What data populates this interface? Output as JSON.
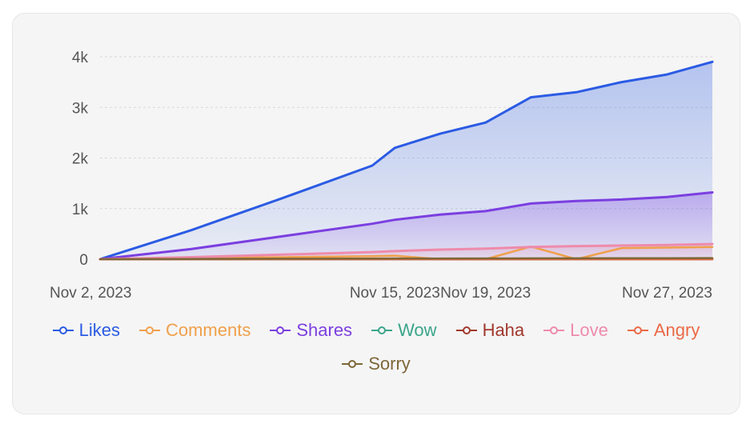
{
  "chart_data": {
    "type": "area",
    "title": "",
    "xlabel": "",
    "ylabel": "",
    "x": [
      "2023-11-02",
      "2023-11-06",
      "2023-11-10",
      "2023-11-14",
      "2023-11-15",
      "2023-11-17",
      "2023-11-19",
      "2023-11-21",
      "2023-11-23",
      "2023-11-25",
      "2023-11-27",
      "2023-11-29"
    ],
    "x_tick_labels": [
      "Nov 2, 2023",
      "Nov 15, 2023",
      "Nov 19, 2023",
      "Nov 27, 2023"
    ],
    "x_tick_dates": [
      "2023-11-02",
      "2023-11-15",
      "2023-11-19",
      "2023-11-27"
    ],
    "ylim": [
      0,
      4000
    ],
    "y_ticks": [
      0,
      1000,
      2000,
      3000,
      4000
    ],
    "y_tick_labels": [
      "0",
      "1k",
      "2k",
      "3k",
      "4k"
    ],
    "grid": true,
    "legend_position": "bottom",
    "series": [
      {
        "name": "Likes",
        "color": "#2b5be3",
        "values": [
          0,
          570,
          1200,
          1850,
          2200,
          2480,
          2700,
          3200,
          3300,
          3500,
          3650,
          3900
        ],
        "filled": true
      },
      {
        "name": "Comments",
        "color": "#f0a04b",
        "values": [
          0,
          20,
          40,
          60,
          70,
          0,
          0,
          250,
          0,
          220,
          230,
          240
        ],
        "filled": false
      },
      {
        "name": "Shares",
        "color": "#7b3fe0",
        "values": [
          0,
          200,
          450,
          700,
          780,
          880,
          950,
          1100,
          1150,
          1180,
          1230,
          1320
        ],
        "filled": true
      },
      {
        "name": "Wow",
        "color": "#3aa58a",
        "values": [
          0,
          0,
          0,
          0,
          0,
          0,
          0,
          0,
          0,
          0,
          0,
          0
        ],
        "filled": false
      },
      {
        "name": "Haha",
        "color": "#a1382d",
        "values": [
          0,
          0,
          0,
          0,
          0,
          0,
          0,
          0,
          0,
          0,
          0,
          0
        ],
        "filled": false
      },
      {
        "name": "Love",
        "color": "#ee8bab",
        "values": [
          0,
          40,
          90,
          140,
          160,
          190,
          210,
          240,
          260,
          270,
          280,
          300
        ],
        "filled": true
      },
      {
        "name": "Angry",
        "color": "#ea6a46",
        "values": [
          0,
          0,
          0,
          0,
          0,
          0,
          0,
          0,
          0,
          0,
          0,
          0
        ],
        "filled": false
      },
      {
        "name": "Sorry",
        "color": "#7d6738",
        "values": [
          0,
          5,
          10,
          12,
          14,
          15,
          16,
          18,
          18,
          20,
          20,
          22
        ],
        "filled": false
      }
    ]
  }
}
